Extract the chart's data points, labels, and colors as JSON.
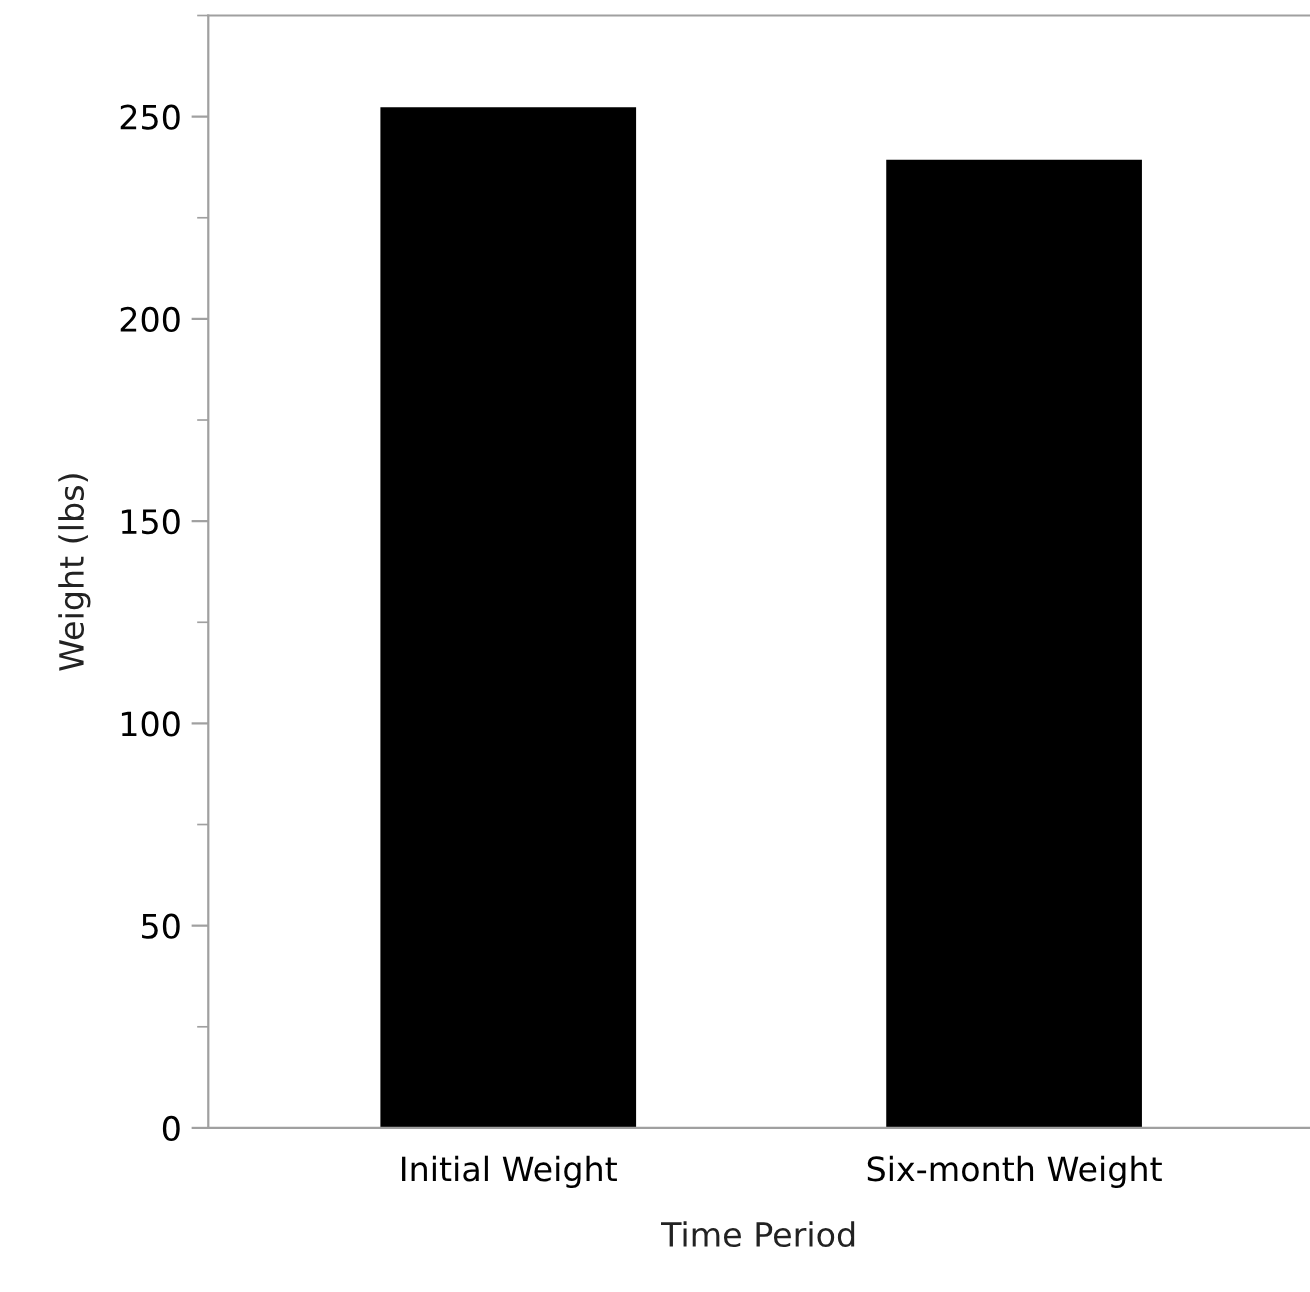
{
  "chart_data": {
    "type": "bar",
    "xlabel": "Time Period",
    "ylabel": "Weight (lbs)",
    "categories": [
      "Initial Weight",
      "Six-month Weight"
    ],
    "values": [
      252,
      239
    ],
    "color": "#000000",
    "ylim": [
      0,
      275
    ],
    "yticks": [
      0,
      50,
      100,
      150,
      200,
      250
    ],
    "grid": false,
    "legend": false
  }
}
